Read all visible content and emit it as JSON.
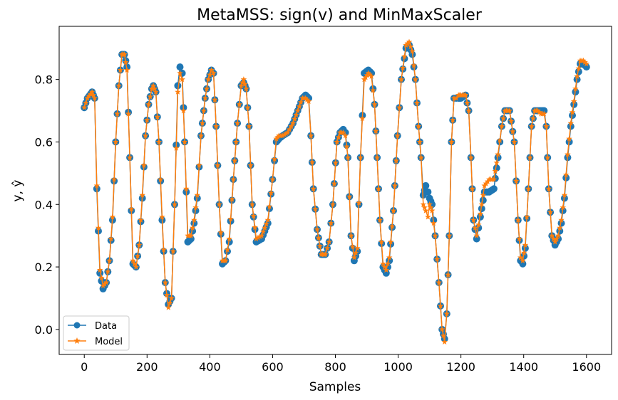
{
  "chart_data": {
    "type": "line",
    "title": "MetaMSS: sign(v) and MinMaxScaler",
    "xlabel": "Samples",
    "ylabel": "y, ŷ",
    "xlim": [
      -80,
      1680
    ],
    "ylim": [
      -0.08,
      0.97
    ],
    "xticks": [
      0,
      200,
      400,
      600,
      800,
      1000,
      1200,
      1400,
      1600
    ],
    "yticks": [
      0.0,
      0.2,
      0.4,
      0.6,
      0.8
    ],
    "xtick_labels": [
      "0",
      "200",
      "400",
      "600",
      "800",
      "1000",
      "1200",
      "1400",
      "1600"
    ],
    "ytick_labels": [
      "0.0",
      "0.2",
      "0.4",
      "0.6",
      "0.8"
    ],
    "grid": false,
    "legend": "lower-left",
    "series": [
      {
        "name": "Data",
        "color": "#1f77b4",
        "marker": "circle",
        "x": [
          0,
          10,
          25,
          33,
          40,
          50,
          60,
          70,
          80,
          90,
          100,
          110,
          120,
          128,
          136,
          145,
          155,
          165,
          175,
          185,
          195,
          205,
          215,
          220,
          228,
          238,
          248,
          258,
          268,
          278,
          288,
          298,
          305,
          312,
          320,
          330,
          340,
          350,
          360,
          372,
          385,
          395,
          405,
          412,
          420,
          430,
          440,
          450,
          462,
          475,
          488,
          500,
          508,
          516,
          525,
          535,
          548,
          565,
          585,
          600,
          612,
          620,
          632,
          648,
          665,
          680,
          695,
          705,
          715,
          722,
          730,
          742,
          755,
          768,
          780,
          792,
          805,
          815,
          825,
          832,
          840,
          850,
          860,
          870,
          880,
          892,
          905,
          915,
          925,
          933,
          942,
          952,
          962,
          972,
          985,
          998,
          1010,
          1025,
          1035,
          1045,
          1055,
          1065,
          1073,
          1080,
          1088,
          1095,
          1100,
          1108,
          1118,
          1130,
          1140,
          1148,
          1155,
          1163,
          1170,
          1178,
          1185,
          1192,
          1200,
          1215,
          1225,
          1232,
          1240,
          1250,
          1262,
          1275,
          1290,
          1305,
          1318,
          1330,
          1340,
          1355,
          1370,
          1382,
          1390,
          1397,
          1405,
          1415,
          1425,
          1435,
          1445,
          1455,
          1465,
          1472,
          1480,
          1490,
          1500,
          1510,
          1520,
          1530,
          1540,
          1550,
          1560,
          1570,
          1580,
          1590,
          1600
        ],
        "y": [
          0.71,
          0.74,
          0.76,
          0.74,
          0.45,
          0.18,
          0.13,
          0.15,
          0.22,
          0.35,
          0.6,
          0.78,
          0.88,
          0.88,
          0.84,
          0.55,
          0.21,
          0.2,
          0.27,
          0.42,
          0.62,
          0.72,
          0.77,
          0.78,
          0.76,
          0.6,
          0.35,
          0.15,
          0.08,
          0.1,
          0.4,
          0.78,
          0.84,
          0.82,
          0.6,
          0.28,
          0.29,
          0.34,
          0.42,
          0.62,
          0.74,
          0.8,
          0.83,
          0.82,
          0.65,
          0.4,
          0.21,
          0.22,
          0.28,
          0.48,
          0.66,
          0.78,
          0.79,
          0.77,
          0.65,
          0.4,
          0.28,
          0.29,
          0.34,
          0.48,
          0.6,
          0.61,
          0.62,
          0.63,
          0.66,
          0.7,
          0.74,
          0.75,
          0.74,
          0.62,
          0.45,
          0.32,
          0.24,
          0.24,
          0.28,
          0.4,
          0.6,
          0.63,
          0.64,
          0.63,
          0.55,
          0.3,
          0.22,
          0.25,
          0.55,
          0.82,
          0.83,
          0.82,
          0.72,
          0.55,
          0.35,
          0.2,
          0.18,
          0.22,
          0.38,
          0.62,
          0.8,
          0.9,
          0.91,
          0.88,
          0.8,
          0.65,
          0.55,
          0.43,
          0.46,
          0.44,
          0.42,
          0.4,
          0.3,
          0.15,
          0.0,
          -0.03,
          0.05,
          0.3,
          0.6,
          0.74,
          0.74,
          0.74,
          0.74,
          0.75,
          0.7,
          0.55,
          0.35,
          0.29,
          0.36,
          0.44,
          0.44,
          0.45,
          0.55,
          0.65,
          0.7,
          0.7,
          0.6,
          0.35,
          0.22,
          0.21,
          0.26,
          0.45,
          0.65,
          0.7,
          0.7,
          0.7,
          0.7,
          0.65,
          0.45,
          0.3,
          0.27,
          0.29,
          0.34,
          0.42,
          0.55,
          0.65,
          0.72,
          0.8,
          0.85,
          0.85,
          0.84
        ]
      },
      {
        "name": "Model",
        "color": "#ff7f0e",
        "marker": "star",
        "x": [
          0,
          10,
          25,
          33,
          40,
          50,
          60,
          70,
          80,
          90,
          100,
          110,
          120,
          128,
          136,
          145,
          155,
          165,
          175,
          185,
          195,
          205,
          215,
          220,
          228,
          238,
          248,
          258,
          268,
          278,
          288,
          298,
          305,
          312,
          320,
          330,
          340,
          350,
          360,
          372,
          385,
          395,
          405,
          412,
          420,
          430,
          440,
          450,
          462,
          475,
          488,
          500,
          508,
          516,
          525,
          535,
          548,
          565,
          585,
          600,
          612,
          620,
          632,
          648,
          665,
          680,
          695,
          705,
          715,
          722,
          730,
          742,
          755,
          768,
          780,
          792,
          805,
          815,
          825,
          832,
          840,
          850,
          860,
          870,
          880,
          892,
          905,
          915,
          925,
          933,
          942,
          952,
          962,
          972,
          985,
          998,
          1010,
          1025,
          1035,
          1045,
          1055,
          1065,
          1073,
          1080,
          1088,
          1095,
          1100,
          1108,
          1118,
          1130,
          1140,
          1148,
          1155,
          1163,
          1170,
          1178,
          1185,
          1192,
          1200,
          1215,
          1225,
          1232,
          1240,
          1250,
          1262,
          1275,
          1290,
          1305,
          1318,
          1330,
          1340,
          1355,
          1370,
          1382,
          1390,
          1397,
          1405,
          1415,
          1425,
          1435,
          1445,
          1455,
          1465,
          1472,
          1480,
          1490,
          1500,
          1510,
          1520,
          1530,
          1540,
          1550,
          1560,
          1570,
          1580,
          1590,
          1600
        ],
        "y": [
          0.71,
          0.74,
          0.76,
          0.74,
          0.46,
          0.19,
          0.14,
          0.15,
          0.22,
          0.36,
          0.6,
          0.78,
          0.88,
          0.88,
          0.83,
          0.55,
          0.22,
          0.2,
          0.27,
          0.43,
          0.62,
          0.72,
          0.77,
          0.78,
          0.76,
          0.6,
          0.36,
          0.15,
          0.07,
          0.1,
          0.4,
          0.76,
          0.82,
          0.8,
          0.6,
          0.3,
          0.3,
          0.35,
          0.43,
          0.62,
          0.74,
          0.8,
          0.83,
          0.82,
          0.65,
          0.4,
          0.22,
          0.22,
          0.29,
          0.48,
          0.66,
          0.78,
          0.8,
          0.77,
          0.65,
          0.4,
          0.29,
          0.3,
          0.35,
          0.48,
          0.61,
          0.62,
          0.62,
          0.63,
          0.66,
          0.7,
          0.74,
          0.74,
          0.73,
          0.62,
          0.45,
          0.32,
          0.24,
          0.24,
          0.28,
          0.4,
          0.6,
          0.63,
          0.63,
          0.62,
          0.55,
          0.3,
          0.23,
          0.26,
          0.55,
          0.8,
          0.82,
          0.81,
          0.72,
          0.55,
          0.35,
          0.21,
          0.19,
          0.23,
          0.38,
          0.62,
          0.8,
          0.91,
          0.92,
          0.89,
          0.8,
          0.65,
          0.55,
          0.4,
          0.38,
          0.36,
          0.4,
          0.38,
          0.3,
          0.15,
          0.0,
          -0.04,
          0.05,
          0.3,
          0.6,
          0.74,
          0.74,
          0.75,
          0.75,
          0.75,
          0.7,
          0.55,
          0.35,
          0.3,
          0.37,
          0.46,
          0.48,
          0.48,
          0.56,
          0.65,
          0.7,
          0.7,
          0.6,
          0.35,
          0.23,
          0.22,
          0.27,
          0.45,
          0.65,
          0.7,
          0.7,
          0.69,
          0.69,
          0.65,
          0.45,
          0.3,
          0.28,
          0.3,
          0.35,
          0.43,
          0.56,
          0.66,
          0.73,
          0.81,
          0.86,
          0.86,
          0.85
        ]
      }
    ]
  }
}
